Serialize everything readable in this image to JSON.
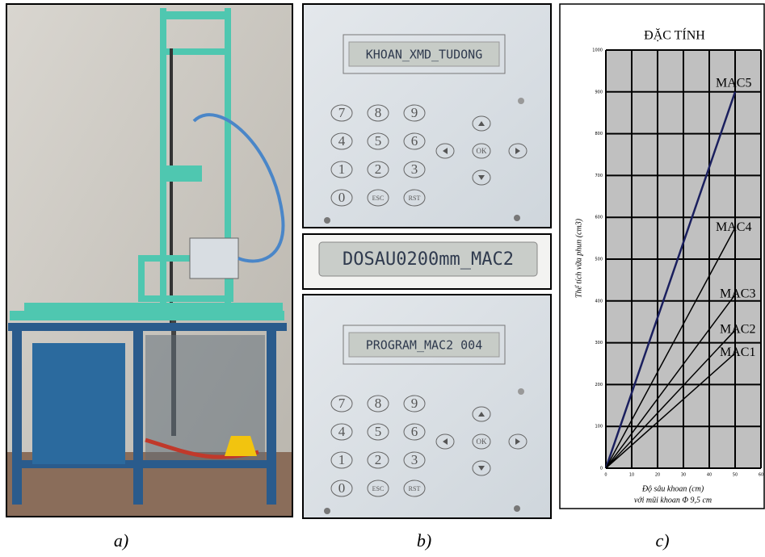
{
  "panel_a": {
    "caption": "a)"
  },
  "panel_b": {
    "caption": "b)",
    "keypads": [
      {
        "display": "KHOAN_XMD_TUDONG",
        "keys": [
          "7",
          "8",
          "9",
          "4",
          "5",
          "6",
          "1",
          "2",
          "3",
          "0",
          "ESC",
          "RST"
        ],
        "ok": "OK"
      },
      {
        "display": "PROGRAM_MAC2 004",
        "keys": [
          "7",
          "8",
          "9",
          "4",
          "5",
          "6",
          "1",
          "2",
          "3",
          "0",
          "ESC",
          "RST"
        ],
        "ok": "OK"
      }
    ],
    "closeup_display": "DOSAU0200mm_MAC2"
  },
  "panel_c": {
    "caption": "c)"
  },
  "chart_data": {
    "type": "line",
    "title": "ĐẶC TÍNH",
    "x_label": "Độ sâu khoan (cm)",
    "x_label_2": "với mũi khoan Φ 9,5 cm",
    "y_label": "Thể tích vữa phun (cm3)",
    "x": [
      0,
      50
    ],
    "series": [
      {
        "name": "MAC5",
        "color": "#1a1f5e",
        "values": [
          0,
          900
        ]
      },
      {
        "name": "MAC4",
        "color": "#000000",
        "values": [
          0,
          575
        ]
      },
      {
        "name": "MAC3",
        "color": "#000000",
        "values": [
          0,
          415
        ]
      },
      {
        "name": "MAC2",
        "color": "#000000",
        "values": [
          0,
          330
        ]
      },
      {
        "name": "MAC1",
        "color": "#000000",
        "values": [
          0,
          275
        ]
      }
    ],
    "xlim": [
      0,
      60
    ],
    "xticks": [
      0,
      10,
      20,
      30,
      40,
      50,
      60
    ],
    "ylim": [
      0,
      1000
    ],
    "yticks": [
      0,
      100,
      200,
      300,
      400,
      500,
      600,
      700,
      800,
      900,
      1000
    ],
    "grid": true,
    "background": "#c0c0c0"
  }
}
